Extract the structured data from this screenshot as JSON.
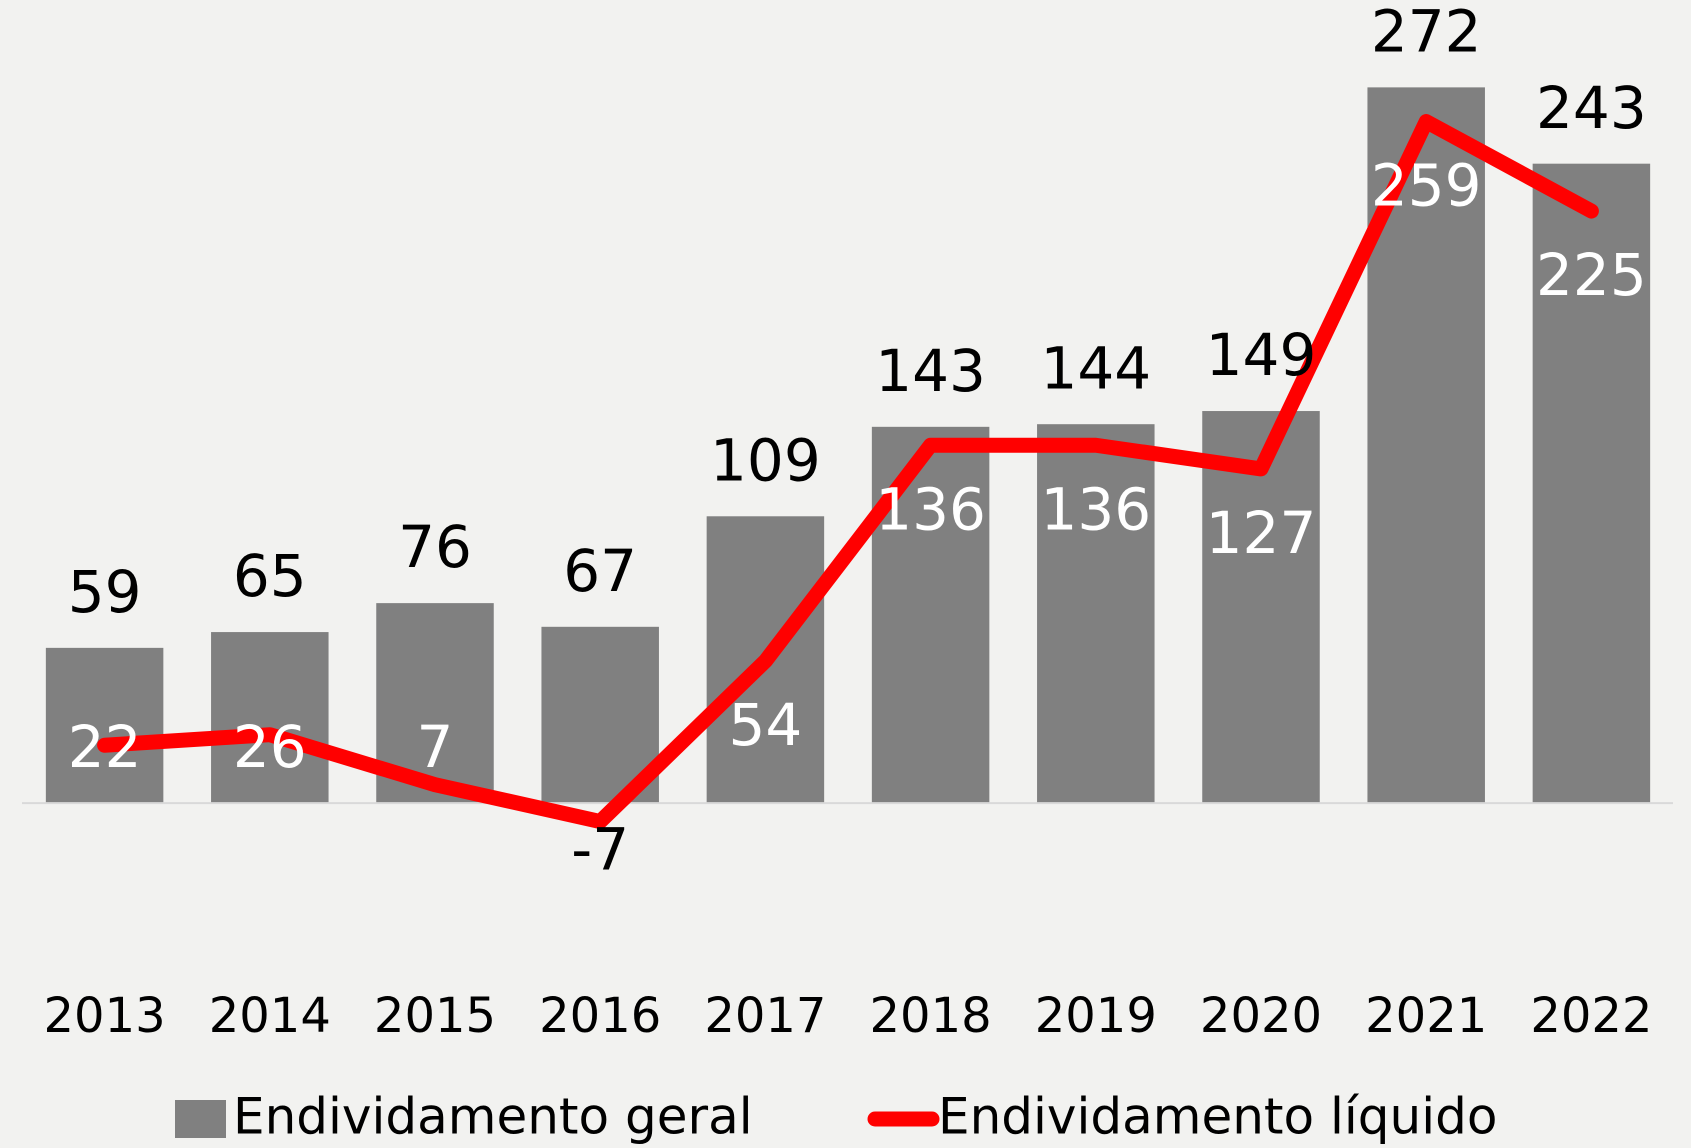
{
  "chart_data": {
    "type": "bar_line",
    "categories": [
      "2013",
      "2014",
      "2015",
      "2016",
      "2017",
      "2018",
      "2019",
      "2020",
      "2021",
      "2022"
    ],
    "series": [
      {
        "name": "Endividamento geral",
        "type": "bar",
        "color": "#808080",
        "values": [
          59,
          65,
          76,
          67,
          109,
          143,
          144,
          149,
          272,
          243
        ]
      },
      {
        "name": "Endividamento líquido",
        "type": "line",
        "color": "#ff0000",
        "values": [
          22,
          26,
          7,
          -7,
          54,
          136,
          136,
          127,
          259,
          225
        ]
      }
    ],
    "ylim": [
      -60,
      290
    ],
    "legend": "bottom"
  }
}
